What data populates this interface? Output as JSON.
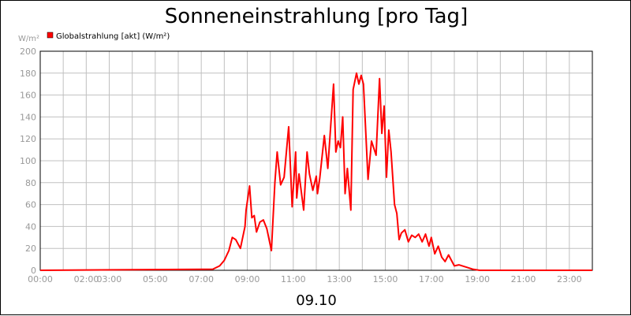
{
  "chart_data": {
    "type": "line",
    "title": "Sonneneinstrahlung [pro Tag]",
    "ylabel": "W/m²",
    "xlabel": "09.10",
    "ylim": [
      0,
      200
    ],
    "y_ticks": [
      "0",
      "20",
      "40",
      "60",
      "80",
      "100",
      "120",
      "140",
      "160",
      "180",
      "200"
    ],
    "x_ticks": [
      "00:00",
      "02:00",
      "03:00",
      "05:00",
      "07:00",
      "09:00",
      "11:00",
      "13:00",
      "15:00",
      "17:00",
      "19:00",
      "21:00",
      "23:00"
    ],
    "x_tick_hours": [
      0,
      2,
      3,
      5,
      7,
      9,
      11,
      13,
      15,
      17,
      19,
      21,
      23
    ],
    "xlim_hours": [
      0,
      24
    ],
    "grid": true,
    "legend_position": "top-left",
    "series": [
      {
        "name": "Globalstrahlung [akt] (W/m²)",
        "color": "#ff0000",
        "x": [
          0,
          7.5,
          7.8,
          8.0,
          8.2,
          8.35,
          8.5,
          8.7,
          8.9,
          8.95,
          9.1,
          9.2,
          9.3,
          9.4,
          9.55,
          9.7,
          9.85,
          10.05,
          10.2,
          10.3,
          10.45,
          10.6,
          10.8,
          10.95,
          11.1,
          11.15,
          11.25,
          11.45,
          11.6,
          11.7,
          11.85,
          12.0,
          12.05,
          12.15,
          12.35,
          12.5,
          12.75,
          12.85,
          12.95,
          13.05,
          13.15,
          13.25,
          13.35,
          13.5,
          13.6,
          13.75,
          13.85,
          13.95,
          14.05,
          14.25,
          14.4,
          14.6,
          14.75,
          14.85,
          14.95,
          15.05,
          15.15,
          15.25,
          15.4,
          15.5,
          15.6,
          15.7,
          15.85,
          16.0,
          16.15,
          16.3,
          16.45,
          16.6,
          16.75,
          16.9,
          17.0,
          17.15,
          17.3,
          17.45,
          17.6,
          17.75,
          17.9,
          18.0,
          18.2,
          18.5,
          18.8,
          19.1,
          24
        ],
        "values": [
          0,
          1,
          4,
          9,
          18,
          30,
          28,
          20,
          40,
          55,
          77,
          48,
          50,
          35,
          44,
          46,
          38,
          18,
          80,
          108,
          78,
          85,
          131,
          58,
          108,
          66,
          88,
          55,
          108,
          88,
          73,
          86,
          70,
          84,
          123,
          93,
          170,
          108,
          118,
          112,
          140,
          70,
          93,
          55,
          165,
          180,
          170,
          178,
          170,
          83,
          118,
          105,
          175,
          125,
          150,
          85,
          128,
          108,
          60,
          52,
          28,
          34,
          37,
          26,
          32,
          30,
          33,
          26,
          33,
          22,
          30,
          15,
          22,
          12,
          8,
          14,
          8,
          4,
          5,
          3,
          1,
          0,
          0
        ]
      }
    ]
  }
}
